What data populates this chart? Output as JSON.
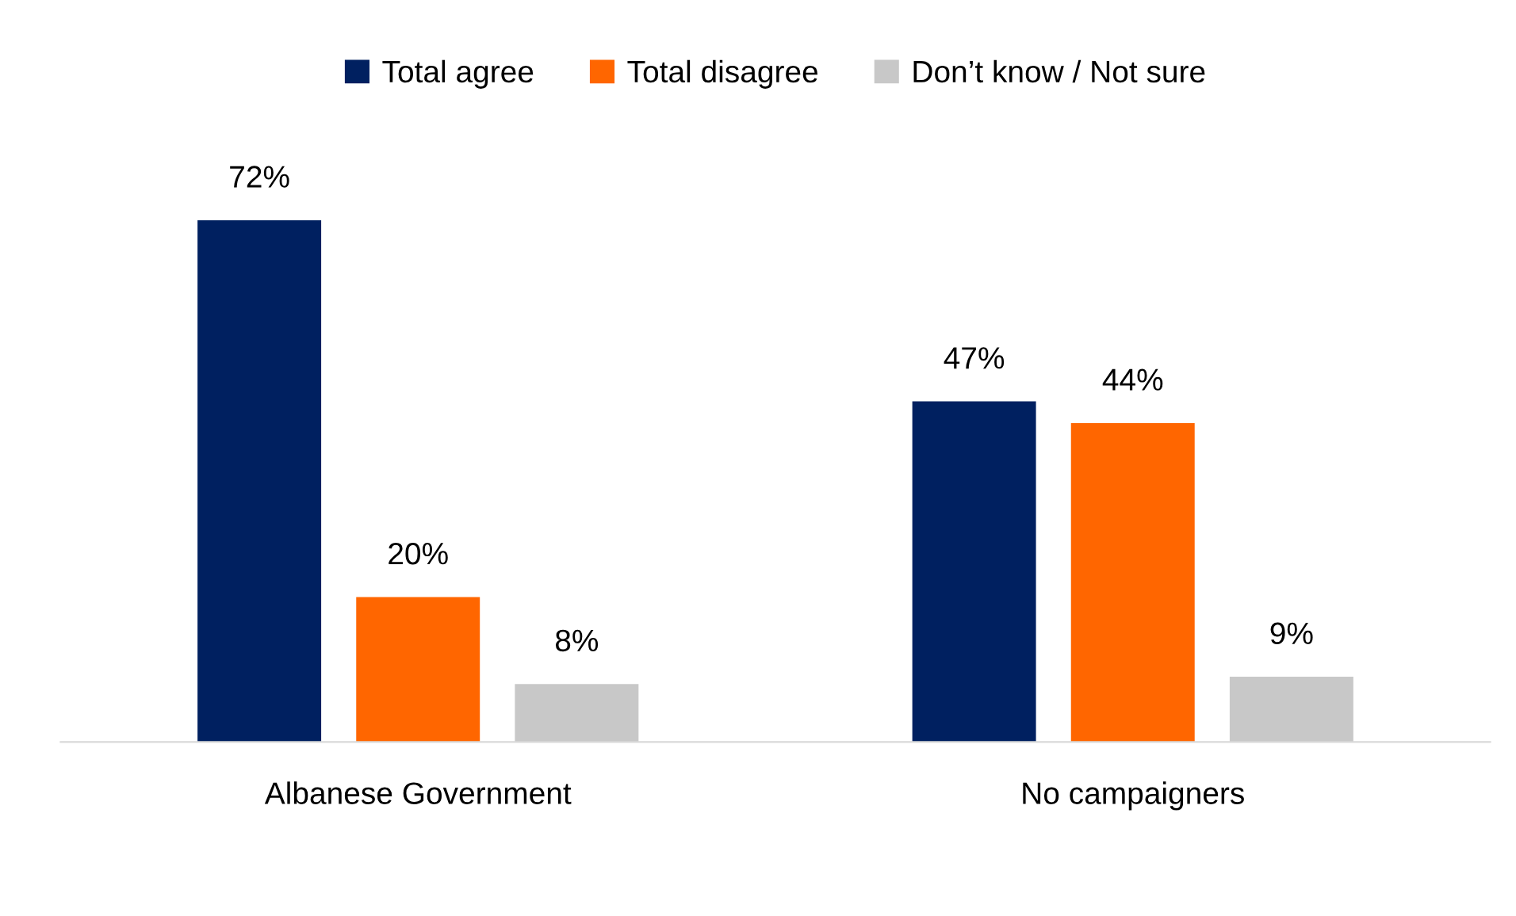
{
  "chart_data": {
    "type": "bar",
    "categories": [
      "Albanese Government",
      "No campaigners"
    ],
    "series": [
      {
        "name": "Total agree",
        "color": "#002060",
        "values": [
          72,
          47
        ],
        "value_labels": [
          "72%",
          "47%"
        ]
      },
      {
        "name": "Total disagree",
        "color": "#ff6600",
        "values": [
          20,
          44
        ],
        "value_labels": [
          "20%",
          "44%"
        ]
      },
      {
        "name": "Don’t know / Not sure",
        "color": "#c8c8c8",
        "values": [
          8,
          9
        ],
        "value_labels": [
          "8%",
          "9%"
        ]
      }
    ],
    "legend": "top",
    "grid": false
  }
}
